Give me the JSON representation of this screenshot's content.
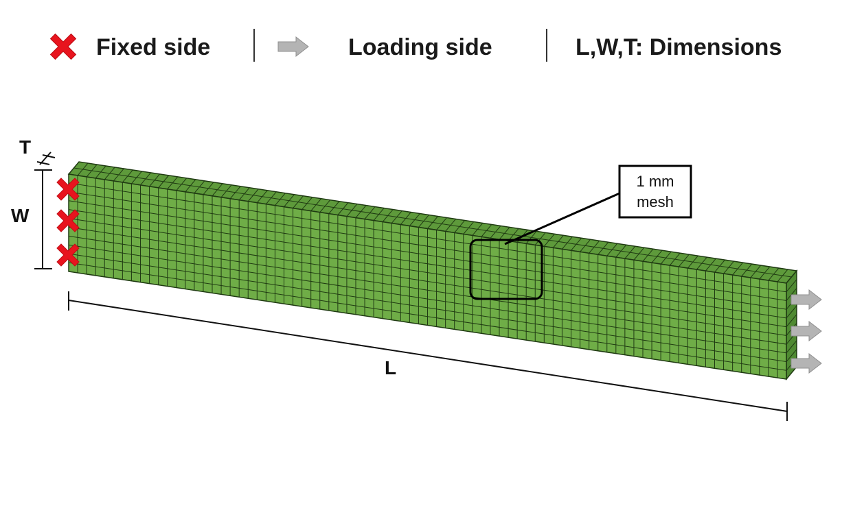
{
  "legend": {
    "fixed_label": "Fixed side",
    "loading_label": "Loading side",
    "dimensions_label": "L,W,T: Dimensions",
    "fixed_icon": "red-x-icon",
    "loading_icon": "gray-arrow-icon"
  },
  "dimensions": {
    "t_label": "T",
    "w_label": "W",
    "l_label": "L"
  },
  "callout": {
    "line1": "1 mm",
    "line2": "mesh"
  },
  "colors": {
    "beam_face": "#6fad47",
    "beam_top": "#5e9a3b",
    "beam_side": "#4f8a32",
    "mesh_line": "#1f3a12",
    "fixed_mark": "#e8141e",
    "load_arrow": "#b4b4b4"
  }
}
